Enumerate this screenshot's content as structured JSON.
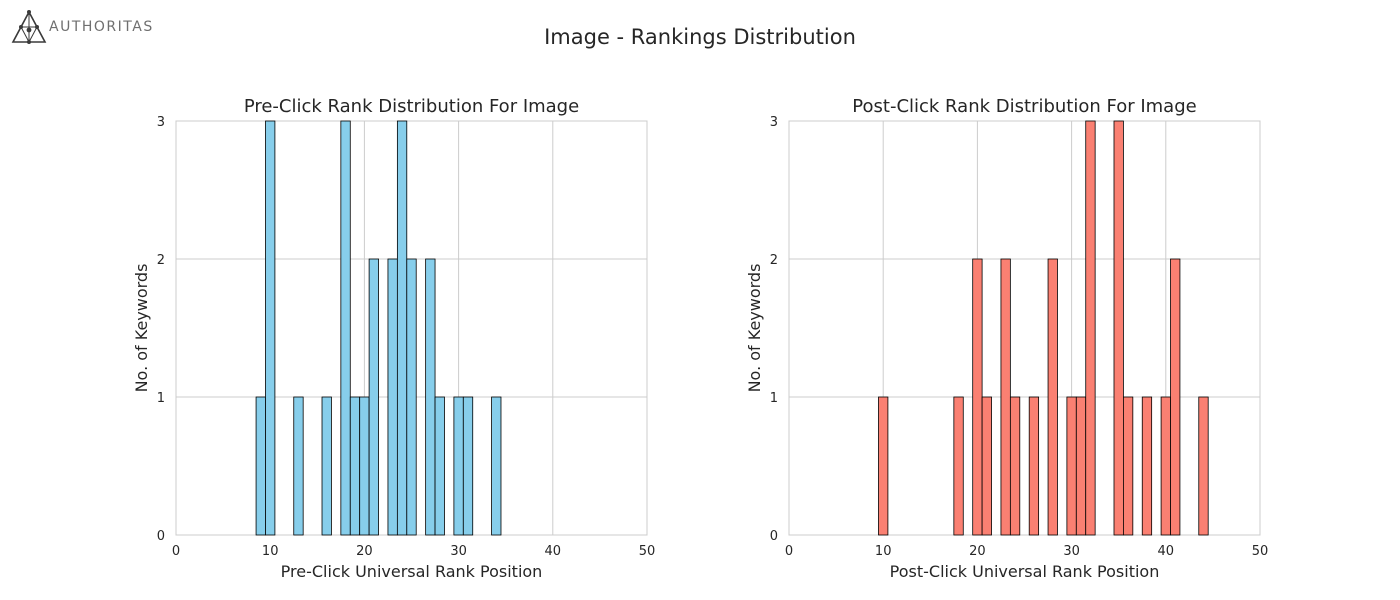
{
  "logo": {
    "text": "AUTHORITAS"
  },
  "figure_title": "Image - Rankings Distribution",
  "chart_data": [
    {
      "type": "bar",
      "title": "Pre-Click Rank Distribution For Image",
      "xlabel": "Pre-Click Universal Rank Position",
      "ylabel": "No. of Keywords",
      "xlim": [
        0,
        50
      ],
      "ylim": [
        0,
        3
      ],
      "xticks": [
        0,
        10,
        20,
        30,
        40,
        50
      ],
      "yticks": [
        0,
        1,
        2,
        3
      ],
      "bin_width": 1,
      "grid": true,
      "color": "#87CEEB",
      "x": [
        9,
        10,
        13,
        16,
        18,
        19,
        20,
        21,
        23,
        24,
        25,
        27,
        28,
        30,
        31,
        34
      ],
      "values": [
        1,
        3,
        1,
        1,
        3,
        1,
        1,
        2,
        2,
        3,
        2,
        2,
        1,
        1,
        1,
        1
      ]
    },
    {
      "type": "bar",
      "title": "Post-Click Rank Distribution For Image",
      "xlabel": "Post-Click Universal Rank Position",
      "ylabel": "No. of Keywords",
      "xlim": [
        0,
        50
      ],
      "ylim": [
        0,
        3
      ],
      "xticks": [
        0,
        10,
        20,
        30,
        40,
        50
      ],
      "yticks": [
        0,
        1,
        2,
        3
      ],
      "bin_width": 1,
      "grid": true,
      "color": "#FA8072",
      "x": [
        10,
        18,
        20,
        21,
        23,
        24,
        26,
        28,
        30,
        31,
        32,
        35,
        36,
        38,
        40,
        41,
        44
      ],
      "values": [
        1,
        1,
        2,
        1,
        2,
        1,
        1,
        2,
        1,
        1,
        3,
        3,
        1,
        1,
        1,
        2,
        1
      ]
    }
  ]
}
